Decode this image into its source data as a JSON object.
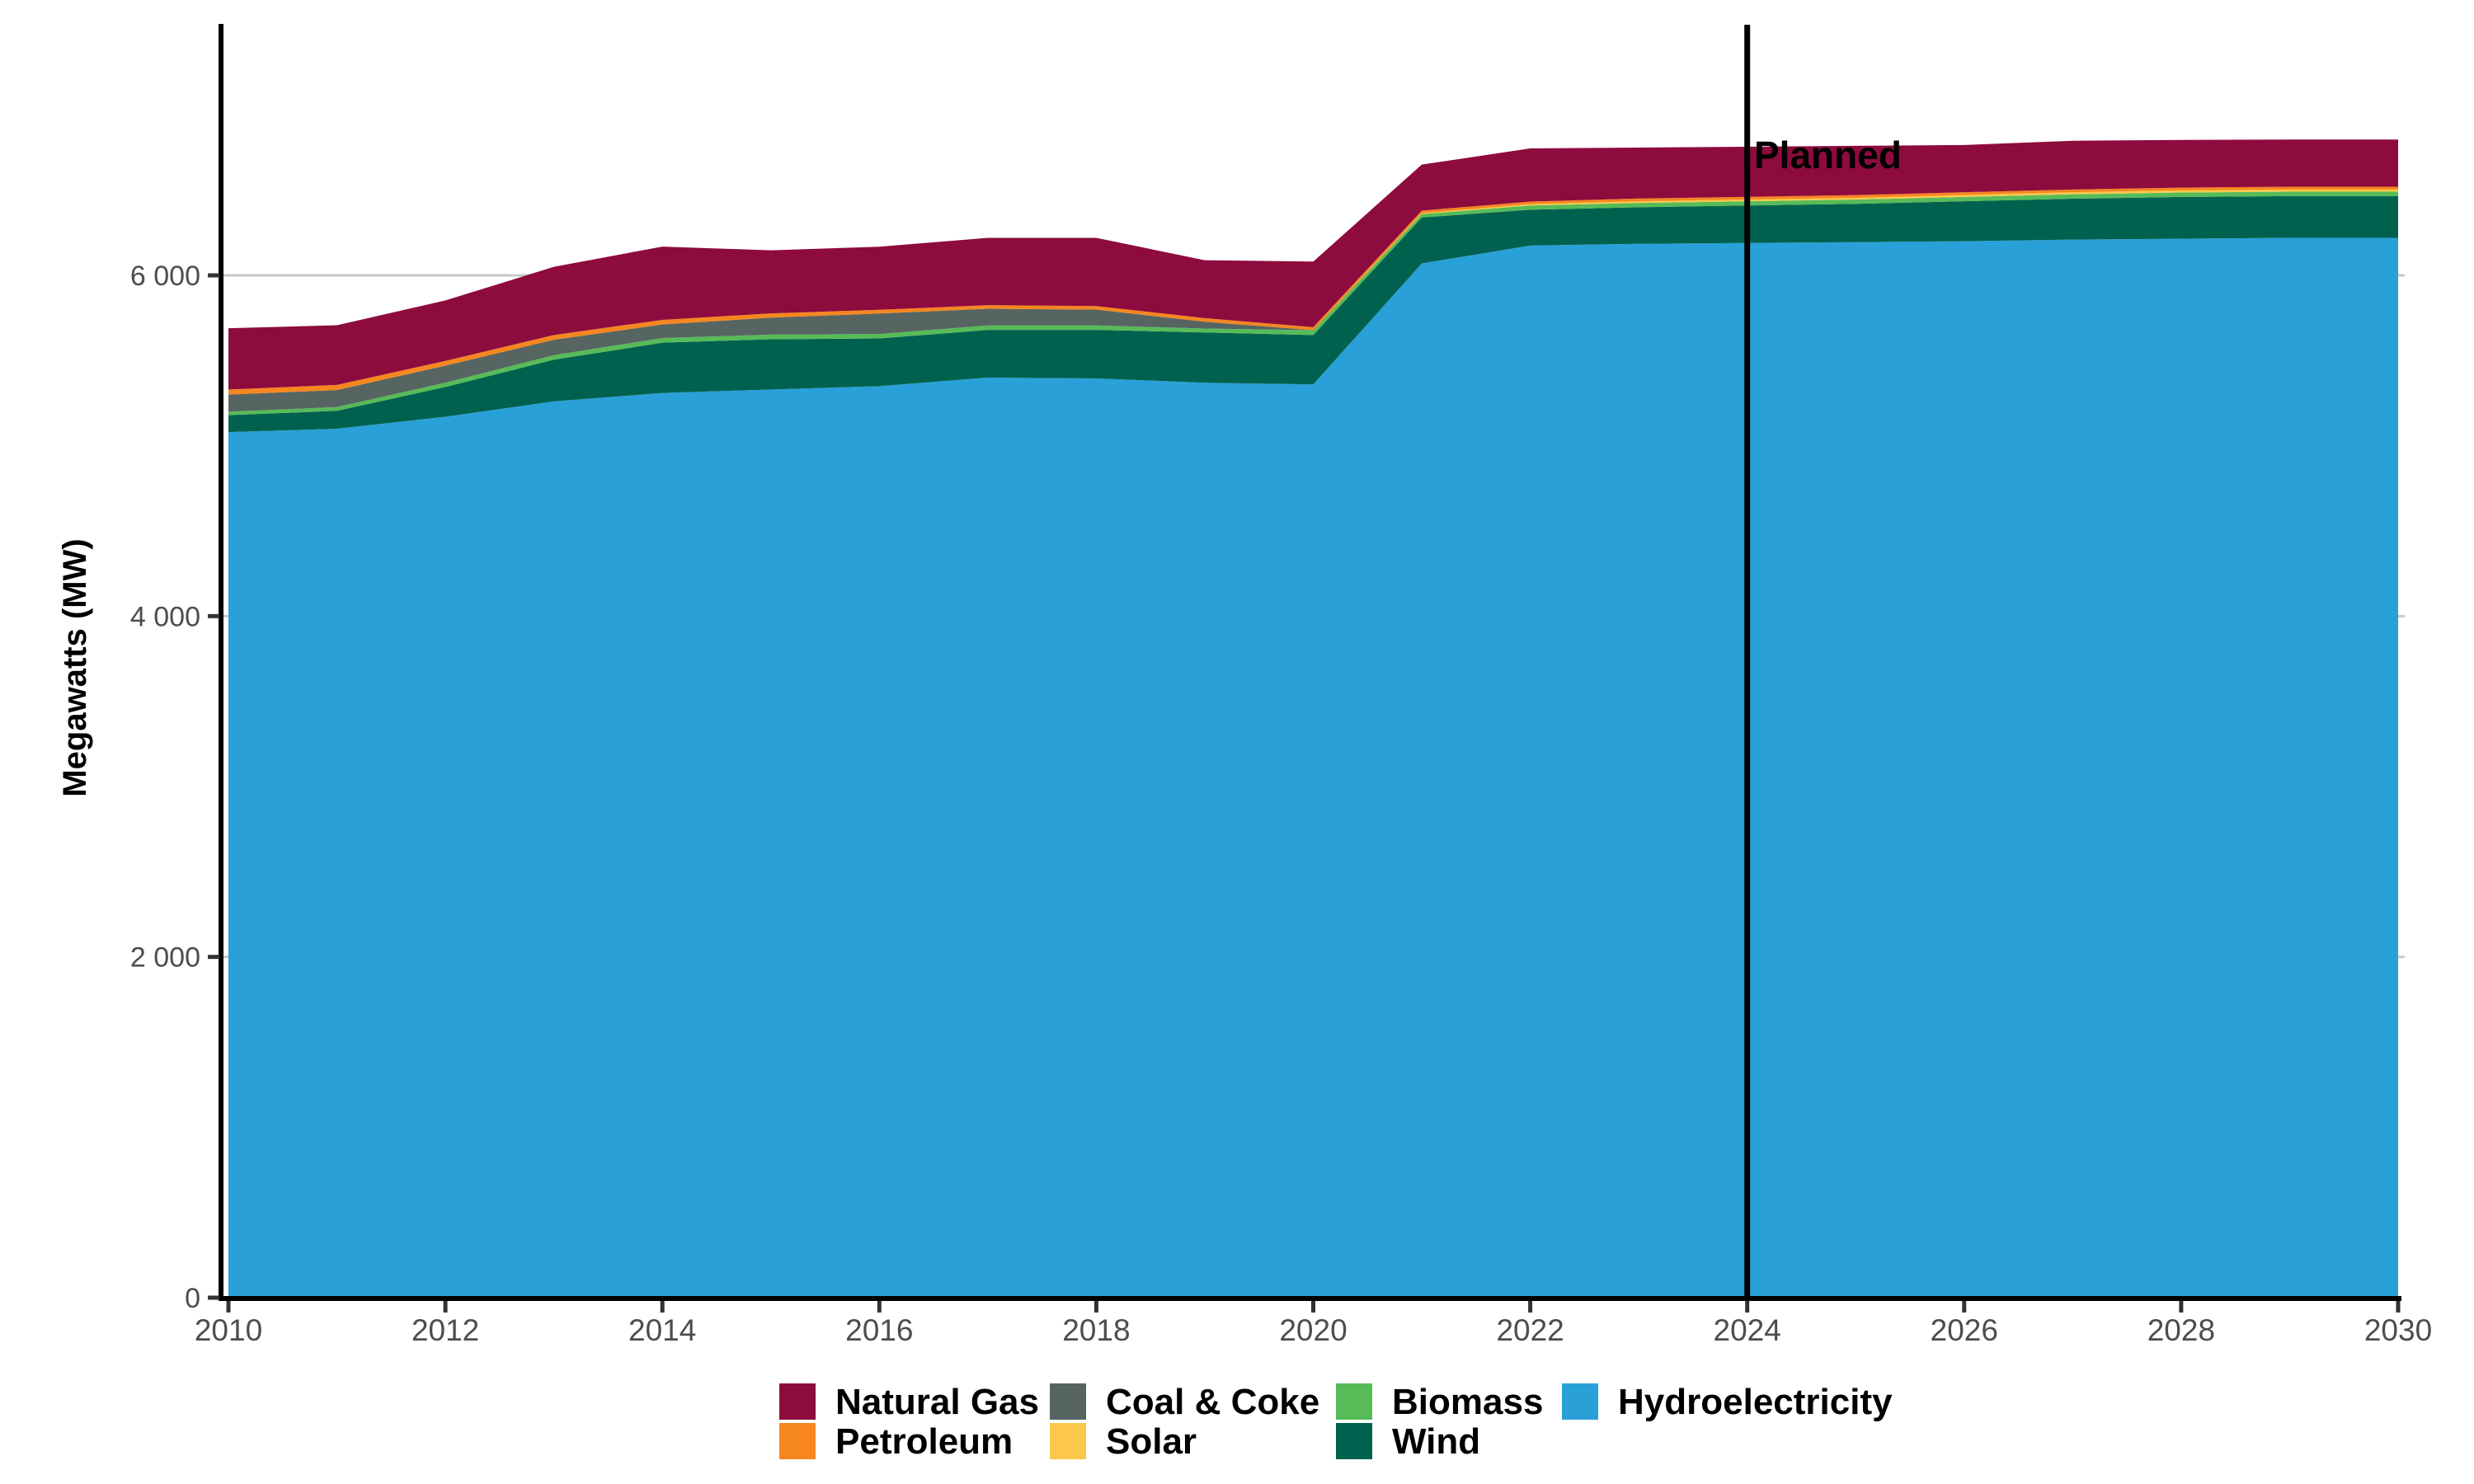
{
  "colors": {
    "natural_gas": "#8E0B3E",
    "petroleum": "#F6861F",
    "coal_coke": "#566561",
    "solar": "#FBC84A",
    "biomass": "#57BB58",
    "wind": "#00624E",
    "hydroelectricity": "#2AA0D8",
    "gridline": "#C9C9C9",
    "axis": "#000000",
    "tick": "#333333",
    "tick_label": "#4D4D4D",
    "annotation_line": "#000000",
    "text": "#000000"
  },
  "chart_data": {
    "type": "area",
    "stacked": true,
    "title": "",
    "xlabel": "",
    "ylabel": "Megawatts (MW)",
    "grid": "horizontal",
    "legend_position": "bottom",
    "xlim": [
      2010,
      2030
    ],
    "ylim": [
      0,
      7470
    ],
    "x": [
      2010,
      2011,
      2012,
      2013,
      2014,
      2015,
      2016,
      2017,
      2018,
      2019,
      2020,
      2021,
      2022,
      2023,
      2024,
      2025,
      2026,
      2027,
      2028,
      2029,
      2030
    ],
    "x_ticks": [
      2010,
      2012,
      2014,
      2016,
      2018,
      2020,
      2022,
      2024,
      2026,
      2028,
      2030
    ],
    "y_ticks": [
      {
        "value": 0,
        "label": "0"
      },
      {
        "value": 2000,
        "label": "2 000"
      },
      {
        "value": 4000,
        "label": "4 000"
      },
      {
        "value": 6000,
        "label": "6 000"
      }
    ],
    "series": [
      {
        "key": "hydroelectricity",
        "name": "Hydroelectricity",
        "color_key": "hydroelectricity",
        "values": [
          5080,
          5100,
          5170,
          5260,
          5310,
          5330,
          5350,
          5400,
          5395,
          5370,
          5360,
          6070,
          6175,
          6185,
          6190,
          6195,
          6200,
          6210,
          6215,
          6220,
          6220
        ]
      },
      {
        "key": "wind",
        "name": "Wind",
        "color_key": "wind",
        "values": [
          100,
          105,
          175,
          245,
          295,
          295,
          280,
          280,
          285,
          295,
          290,
          270,
          210,
          215,
          220,
          225,
          235,
          240,
          245,
          245,
          245
        ]
      },
      {
        "key": "biomass",
        "name": "Biomass",
        "color_key": "biomass",
        "values": [
          20,
          22,
          25,
          27,
          27,
          27,
          26,
          26,
          26,
          23,
          28,
          20,
          25,
          25,
          25,
          25,
          25,
          26,
          26,
          26,
          26
        ]
      },
      {
        "key": "solar",
        "name": "Solar",
        "color_key": "solar",
        "values": [
          0,
          0,
          0,
          0,
          0,
          0,
          0,
          0,
          0,
          0,
          0,
          5,
          8,
          10,
          10,
          10,
          12,
          12,
          13,
          13,
          13
        ]
      },
      {
        "key": "coal_coke",
        "name": "Coal & Coke",
        "color_key": "coal_coke",
        "values": [
          100,
          100,
          100,
          90,
          80,
          100,
          120,
          98,
          93,
          40,
          0,
          0,
          0,
          0,
          0,
          0,
          0,
          0,
          0,
          0,
          0
        ]
      },
      {
        "key": "petroleum",
        "name": "Petroleum",
        "color_key": "petroleum",
        "values": [
          30,
          30,
          28,
          28,
          27,
          25,
          22,
          21,
          21,
          21,
          18,
          15,
          15,
          16,
          16,
          16,
          16,
          16,
          16,
          16,
          16
        ]
      },
      {
        "key": "natural_gas",
        "name": "Natural Gas",
        "color_key": "natural_gas",
        "values": [
          360,
          350,
          355,
          400,
          430,
          370,
          370,
          395,
          400,
          340,
          385,
          270,
          312,
          299,
          294,
          289,
          277,
          286,
          280,
          277,
          277
        ]
      }
    ],
    "annotation": {
      "type": "vline",
      "x": 2024,
      "label": "Planned"
    },
    "legend": {
      "items": [
        {
          "key": "natural_gas",
          "label": "Natural Gas",
          "color_key": "natural_gas",
          "row": 0,
          "col": 0
        },
        {
          "key": "coal_coke",
          "label": "Coal & Coke",
          "color_key": "coal_coke",
          "row": 0,
          "col": 1
        },
        {
          "key": "biomass",
          "label": "Biomass",
          "color_key": "biomass",
          "row": 0,
          "col": 2
        },
        {
          "key": "hydroelectricity",
          "label": "Hydroelectricity",
          "color_key": "hydroelectricity",
          "row": 0,
          "col": 3
        },
        {
          "key": "petroleum",
          "label": "Petroleum",
          "color_key": "petroleum",
          "row": 1,
          "col": 0
        },
        {
          "key": "solar",
          "label": "Solar",
          "color_key": "solar",
          "row": 1,
          "col": 1
        },
        {
          "key": "wind",
          "label": "Wind",
          "color_key": "wind",
          "row": 1,
          "col": 2
        }
      ]
    }
  }
}
